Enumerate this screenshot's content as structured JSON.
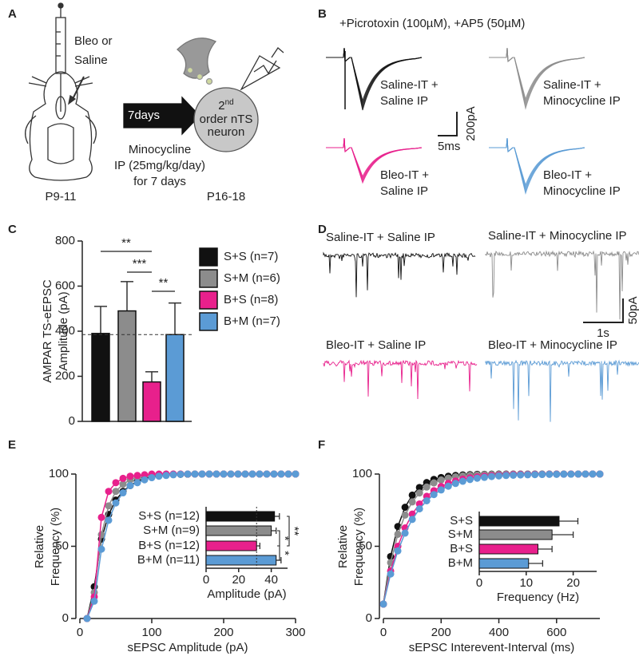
{
  "panel_labels": [
    "A",
    "B",
    "C",
    "D",
    "E",
    "F"
  ],
  "diagram": {
    "injection": [
      "Bleo or",
      "Saline"
    ],
    "arrow": "7days",
    "treatment": [
      "Minocycline",
      "IP (25mg/kg/day)",
      "for 7 days"
    ],
    "age_start": "P9-11",
    "age_end": "P16-18",
    "neuron": [
      "2",
      "nd",
      "order nTS",
      "neuron"
    ]
  },
  "traces_evoked": {
    "condition": "+Picrotoxin (100µM), +AP5 (50µM)",
    "groups": [
      [
        "Saline-IT +",
        "Saline IP"
      ],
      [
        "Saline-IT +",
        "Minocycline IP"
      ],
      [
        "Bleo-IT +",
        "Saline IP"
      ],
      [
        "Bleo-IT +",
        "Minocycline IP"
      ]
    ],
    "scale_y": "200pA",
    "scale_x": "5ms"
  },
  "traces_spontaneous": {
    "groups": [
      "Saline-IT + Saline IP",
      "Saline-IT + Minocycline IP",
      "Bleo-IT + Saline IP",
      "Bleo-IT + Minocycline IP"
    ],
    "scale_y": "50pA",
    "scale_x": "1s"
  },
  "chart_data": [
    {
      "type": "bar",
      "ylabel": [
        "AMPAR TS-eEPSC",
        "Amplitude (pA)"
      ],
      "ylim": [
        0,
        800
      ],
      "yticks": [
        0,
        200,
        400,
        600,
        800
      ],
      "categories": [
        null
      ],
      "series": [
        {
          "name": "S+S (n=7)",
          "color": "#111111",
          "values": [
            390
          ],
          "errors": [
            120
          ]
        },
        {
          "name": "S+M (n=6)",
          "color": "#8c8c8c",
          "values": [
            490
          ],
          "errors": [
            130
          ]
        },
        {
          "name": "B+S (n=8)",
          "color": "#e8208c",
          "values": [
            175
          ],
          "errors": [
            45
          ]
        },
        {
          "name": "B+M (n=7)",
          "color": "#5b9bd5",
          "values": [
            385
          ],
          "errors": [
            140
          ]
        }
      ],
      "reference_line": 385,
      "annotations": [
        "**",
        "***",
        "**"
      ]
    },
    {
      "type": "line",
      "xlabel": "sEPSC Amplitude (pA)",
      "ylabel": [
        "Relative",
        "Frequency (%)"
      ],
      "xlim": [
        0,
        300
      ],
      "xticks": [
        0,
        100,
        200,
        300
      ],
      "ylim": [
        0,
        100
      ],
      "yticks": [
        0,
        50,
        100
      ],
      "x": [
        10,
        20,
        30,
        40,
        50,
        60,
        70,
        80,
        90,
        100,
        110,
        120,
        130,
        140,
        150,
        160,
        170,
        180,
        190,
        200,
        210,
        220,
        230,
        240,
        250,
        260,
        270,
        280,
        290,
        300
      ],
      "series": [
        {
          "color": "#111111",
          "values": [
            0,
            22,
            55,
            72,
            82,
            88,
            92,
            95,
            97,
            98,
            99,
            99.5,
            99.7,
            99.8,
            99.9,
            100,
            100,
            100,
            100,
            100,
            100,
            100,
            100,
            100,
            100,
            100,
            100,
            100,
            100,
            100
          ]
        },
        {
          "color": "#8c8c8c",
          "values": [
            0,
            18,
            58,
            78,
            88,
            93,
            96,
            98,
            99,
            99.5,
            99.8,
            99.9,
            100,
            100,
            100,
            100,
            100,
            100,
            100,
            100,
            100,
            100,
            100,
            100,
            100,
            100,
            100,
            100,
            100,
            100
          ]
        },
        {
          "color": "#e8208c",
          "values": [
            0,
            15,
            70,
            88,
            94,
            97,
            98.5,
            99,
            99.5,
            100,
            100,
            100,
            100,
            100,
            100,
            100,
            100,
            100,
            100,
            100,
            100,
            100,
            100,
            100,
            100,
            100,
            100,
            100,
            100,
            100
          ]
        },
        {
          "color": "#5b9bd5",
          "values": [
            0,
            12,
            48,
            68,
            80,
            87,
            92,
            94,
            96,
            97.5,
            98.5,
            99,
            99.5,
            99.8,
            100,
            100,
            100,
            100,
            100,
            100,
            100,
            100,
            100,
            100,
            100,
            100,
            100,
            100,
            100,
            100
          ]
        }
      ]
    },
    {
      "type": "barh",
      "xlabel": "Amplitude (pA)",
      "xlim": [
        0,
        50
      ],
      "xticks": [
        0,
        20,
        40
      ],
      "categories": [
        "S+S (n=12)",
        "S+M (n=9)",
        "B+S (n=12)",
        "B+M (n=11)"
      ],
      "values": [
        42,
        40,
        31,
        43
      ],
      "errors": [
        3,
        3,
        2,
        3
      ],
      "colors": [
        "#111111",
        "#8c8c8c",
        "#e8208c",
        "#5b9bd5"
      ],
      "reference_line": 31,
      "annotations": [
        "*",
        "*",
        "**"
      ]
    },
    {
      "type": "line",
      "xlabel": "sEPSC Interevent-Interval (ms)",
      "ylabel": [
        "Relative",
        "Frequency (%)"
      ],
      "xlim": [
        0,
        750
      ],
      "xticks": [
        0,
        200,
        400,
        600
      ],
      "ylim": [
        0,
        100
      ],
      "yticks": [
        0,
        50,
        100
      ],
      "x": [
        0,
        25,
        50,
        75,
        100,
        125,
        150,
        175,
        200,
        225,
        250,
        275,
        300,
        325,
        350,
        375,
        400,
        425,
        450,
        475,
        500,
        525,
        550,
        575,
        600,
        625,
        650,
        675,
        700,
        725,
        750
      ],
      "series": [
        {
          "color": "#111111",
          "values": [
            10,
            42.9,
            63.7,
            77,
            85.4,
            90.7,
            94.1,
            96.3,
            97.6,
            98.5,
            99,
            99.4,
            99.6,
            99.8,
            99.8,
            99.9,
            100,
            100,
            100,
            100,
            100,
            100,
            100,
            100,
            100,
            100,
            100,
            100,
            100,
            100,
            100
          ]
        },
        {
          "color": "#8c8c8c",
          "values": [
            10,
            38.7,
            58.3,
            71.6,
            80.7,
            86.9,
            91,
            93.9,
            95.9,
            97.2,
            98.1,
            98.7,
            99.1,
            99.4,
            99.6,
            99.7,
            99.8,
            99.9,
            100,
            100,
            100,
            100,
            100,
            100,
            100,
            100,
            100,
            100,
            100,
            100,
            100
          ]
        },
        {
          "color": "#e8208c",
          "values": [
            10,
            32.9,
            50,
            62.7,
            72.3,
            79.3,
            84.6,
            88.5,
            91.4,
            93.6,
            95.2,
            96.5,
            97.4,
            98,
            98.5,
            98.9,
            99.2,
            99.4,
            99.6,
            99.7,
            99.7,
            99.8,
            99.8,
            99.9,
            99.9,
            99.9,
            100,
            100,
            100,
            100,
            100
          ]
        },
        {
          "color": "#5b9bd5",
          "values": [
            10,
            30.8,
            46.8,
            59.1,
            68.6,
            75.9,
            81.5,
            85.8,
            89,
            91.6,
            93.5,
            95,
            96.2,
            97.1,
            97.7,
            98.3,
            98.7,
            99,
            99.2,
            99.4,
            99.5,
            99.6,
            99.7,
            99.8,
            99.8,
            99.9,
            99.9,
            100,
            100,
            100,
            100
          ]
        }
      ]
    },
    {
      "type": "barh",
      "xlabel": "Frequency (Hz)",
      "xlim": [
        0,
        25
      ],
      "xticks": [
        0,
        10,
        20
      ],
      "categories": [
        "S+S",
        "S+M",
        "B+S",
        "B+M"
      ],
      "values": [
        17,
        15.5,
        12.5,
        10.5
      ],
      "errors": [
        4,
        4.5,
        3,
        3
      ],
      "colors": [
        "#111111",
        "#8c8c8c",
        "#e8208c",
        "#5b9bd5"
      ]
    }
  ]
}
